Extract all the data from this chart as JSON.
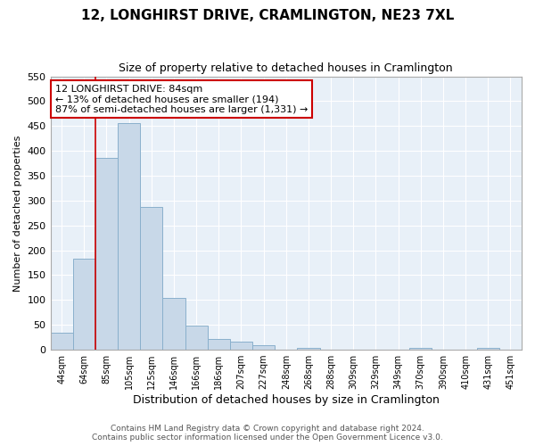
{
  "title": "12, LONGHIRST DRIVE, CRAMLINGTON, NE23 7XL",
  "subtitle": "Size of property relative to detached houses in Cramlington",
  "xlabel": "Distribution of detached houses by size in Cramlington",
  "ylabel": "Number of detached properties",
  "bar_labels": [
    "44sqm",
    "64sqm",
    "85sqm",
    "105sqm",
    "125sqm",
    "146sqm",
    "166sqm",
    "186sqm",
    "207sqm",
    "227sqm",
    "248sqm",
    "268sqm",
    "288sqm",
    "309sqm",
    "329sqm",
    "349sqm",
    "370sqm",
    "390sqm",
    "410sqm",
    "431sqm",
    "451sqm"
  ],
  "bar_values": [
    35,
    183,
    386,
    456,
    288,
    105,
    49,
    22,
    17,
    9,
    1,
    4,
    0,
    0,
    0,
    0,
    4,
    0,
    0,
    4,
    0
  ],
  "bar_color": "#c8d8e8",
  "bar_edge_color": "#8ab0cc",
  "vline_x": 2,
  "vline_color": "#cc0000",
  "ylim": [
    0,
    550
  ],
  "yticks": [
    0,
    50,
    100,
    150,
    200,
    250,
    300,
    350,
    400,
    450,
    500,
    550
  ],
  "annotation_title": "12 LONGHIRST DRIVE: 84sqm",
  "annotation_line1": "← 13% of detached houses are smaller (194)",
  "annotation_line2": "87% of semi-detached houses are larger (1,331) →",
  "footer_line1": "Contains HM Land Registry data © Crown copyright and database right 2024.",
  "footer_line2": "Contains public sector information licensed under the Open Government Licence v3.0.",
  "bg_color": "#ffffff",
  "plot_bg_color": "#e8f0f8",
  "grid_color": "#ffffff"
}
